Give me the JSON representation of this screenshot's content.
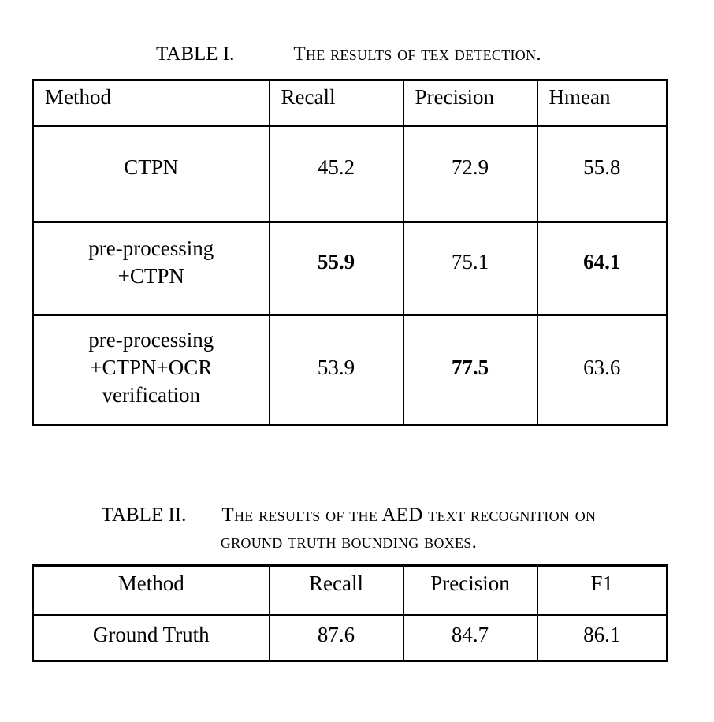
{
  "page": {
    "background": "#ffffff",
    "text_color": "#000000",
    "border_color": "#000000"
  },
  "table1": {
    "caption": {
      "label": "TABLE I.",
      "title": "The results of tex detection."
    },
    "columns": [
      "Method",
      "Recall",
      "Precision",
      "Hmean"
    ],
    "rows": [
      {
        "method": "CTPN",
        "values": [
          "45.2",
          "72.9",
          "55.8"
        ],
        "bold": [
          false,
          false,
          false
        ]
      },
      {
        "method": "pre-processing\n+CTPN",
        "values": [
          "55.9",
          "75.1",
          "64.1"
        ],
        "bold": [
          true,
          false,
          true
        ]
      },
      {
        "method": "pre-processing\n+CTPN+OCR\nverification",
        "values": [
          "53.9",
          "77.5",
          "63.6"
        ],
        "bold": [
          false,
          true,
          false
        ]
      }
    ]
  },
  "table2": {
    "caption": {
      "label": "TABLE II.",
      "title": "The results of the AED text recognition on\nground truth bounding boxes."
    },
    "columns": [
      "Method",
      "Recall",
      "Precision",
      "F1"
    ],
    "rows": [
      {
        "method": "Ground Truth",
        "values": [
          "87.6",
          "84.7",
          "86.1"
        ],
        "bold": [
          false,
          false,
          false
        ]
      }
    ]
  }
}
